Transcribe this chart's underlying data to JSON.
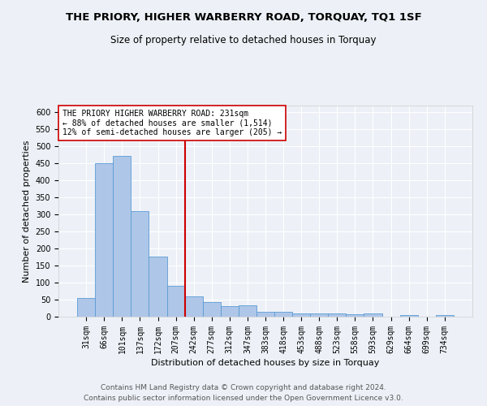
{
  "title": "THE PRIORY, HIGHER WARBERRY ROAD, TORQUAY, TQ1 1SF",
  "subtitle": "Size of property relative to detached houses in Torquay",
  "xlabel": "Distribution of detached houses by size in Torquay",
  "ylabel": "Number of detached properties",
  "footer_line1": "Contains HM Land Registry data © Crown copyright and database right 2024.",
  "footer_line2": "Contains public sector information licensed under the Open Government Licence v3.0.",
  "bar_labels": [
    "31sqm",
    "66sqm",
    "101sqm",
    "137sqm",
    "172sqm",
    "207sqm",
    "242sqm",
    "277sqm",
    "312sqm",
    "347sqm",
    "383sqm",
    "418sqm",
    "453sqm",
    "488sqm",
    "523sqm",
    "558sqm",
    "593sqm",
    "629sqm",
    "664sqm",
    "699sqm",
    "734sqm"
  ],
  "bar_values": [
    55,
    450,
    472,
    311,
    176,
    90,
    59,
    43,
    31,
    33,
    15,
    15,
    10,
    10,
    10,
    8,
    10,
    0,
    4,
    0,
    4
  ],
  "bar_color": "#aec6e8",
  "bar_edge_color": "#5b9bd5",
  "vline_color": "#cc0000",
  "ylim": [
    0,
    620
  ],
  "yticks": [
    0,
    50,
    100,
    150,
    200,
    250,
    300,
    350,
    400,
    450,
    500,
    550,
    600
  ],
  "annotation_text": "THE PRIORY HIGHER WARBERRY ROAD: 231sqm\n← 88% of detached houses are smaller (1,514)\n12% of semi-detached houses are larger (205) →",
  "annotation_box_color": "#ffffff",
  "annotation_box_edge_color": "#cc0000",
  "bg_color": "#edf1f7",
  "plot_bg_color": "#edf1f7",
  "grid_color": "#ffffff",
  "title_fontsize": 9.5,
  "subtitle_fontsize": 8.5,
  "axis_label_fontsize": 8,
  "tick_fontsize": 7,
  "annotation_fontsize": 7,
  "footer_fontsize": 6.5
}
